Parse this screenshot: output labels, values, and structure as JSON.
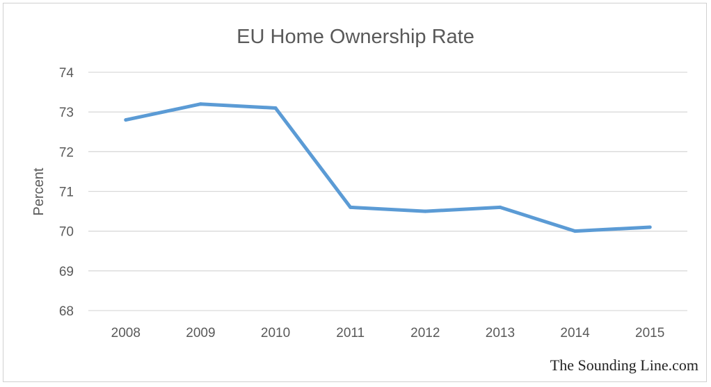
{
  "chart_data": {
    "type": "line",
    "title": "EU Home Ownership Rate",
    "xlabel": "",
    "ylabel": "Percent",
    "categories": [
      "2008",
      "2009",
      "2010",
      "2011",
      "2012",
      "2013",
      "2014",
      "2015"
    ],
    "series": [
      {
        "values": [
          72.8,
          73.2,
          73.1,
          70.6,
          70.5,
          70.6,
          70.0,
          70.1
        ]
      }
    ],
    "ylim": [
      68,
      74
    ],
    "yticks": [
      "68",
      "69",
      "70",
      "71",
      "72",
      "73",
      "74"
    ],
    "grid": true,
    "legend": "none",
    "line_color": "#5b9bd5"
  },
  "credit": "The Sounding Line.com"
}
